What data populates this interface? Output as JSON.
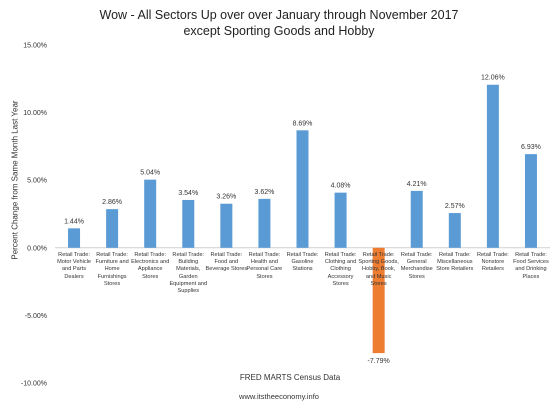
{
  "chart_data": {
    "type": "bar",
    "title": [
      "Wow - All Sectors Up over over January through November 2017",
      "except Sporting Goods and Hobby"
    ],
    "ylabel": "Percent Change from Same Month Last Year",
    "xlabel": "FRED MARTS Census Data",
    "footer": "www.itstheeconomy.info",
    "ylim": [
      -10,
      15
    ],
    "yticks": [
      {
        "value": 15,
        "label": "15.00%"
      },
      {
        "value": 10,
        "label": "10.00%"
      },
      {
        "value": 5,
        "label": "5.00%"
      },
      {
        "value": 0,
        "label": "0.00%"
      },
      {
        "value": -5,
        "label": "-5.00%"
      },
      {
        "value": -10,
        "label": "-10.00%"
      }
    ],
    "grid": false,
    "colors": {
      "default": "#5b9bd5",
      "highlight": "#ed7d31"
    },
    "categories": [
      "Retail Trade: Motor Vehicle and Parts Dealers",
      "Retail Trade: Furniture and Home Furnishings Stores",
      "Retail Trade: Electronics and Appliance Stores",
      "Retail Trade: Building Materials, Garden Equipment and Supplies",
      "Retail Trade: Food and Beverage Stores",
      "Retail Trade: Health and Personal Care Stores",
      "Retail Trade: Gasoline Stations",
      "Retail Trade: Clothing and Clothing Accessory Stores",
      "Retail Trade: Sporting Goods, Hobby, Book, and Music Stores",
      "Retail Trade: General Merchandise Stores",
      "Retail Trade: Miscellaneous Store Retailers",
      "Retail Trade: Nonstore Retailers",
      "Retail Trade: Food Services and Drinking Places"
    ],
    "category_lines": [
      [
        "Retail Trade:",
        "Motor Vehicle",
        "and Parts",
        "Dealers"
      ],
      [
        "Retail Trade:",
        "Furniture and",
        "Home",
        "Furnishings",
        "Stores"
      ],
      [
        "Retail Trade:",
        "Electronics and",
        "Appliance",
        "Stores"
      ],
      [
        "Retail Trade:",
        "Building",
        "Materials,",
        "Garden",
        "Equipment and",
        "Supplies"
      ],
      [
        "Retail Trade:",
        "Food and",
        "Beverage Stores"
      ],
      [
        "Retail Trade:",
        "Health and",
        "Personal Care",
        "Stores"
      ],
      [
        "Retail Trade:",
        "Gasoline",
        "Stations"
      ],
      [
        "Retail Trade:",
        "Clothing and",
        "Clothing",
        "Accessory",
        "Stores"
      ],
      [
        "Retail Trade:",
        "Sporting Goods,",
        "Hobby, Book,",
        "and Music",
        "Stores"
      ],
      [
        "Retail Trade:",
        "General",
        "Merchandise",
        "Stores"
      ],
      [
        "Retail Trade:",
        "Miscellaneous",
        "Store Retailers"
      ],
      [
        "Retail Trade:",
        "Nonstore",
        "Retailers"
      ],
      [
        "Retail Trade:",
        "Food Services",
        "and Drinking",
        "Places"
      ]
    ],
    "values": [
      1.44,
      2.86,
      5.04,
      3.54,
      3.26,
      3.62,
      8.69,
      4.08,
      -7.79,
      4.21,
      2.57,
      12.06,
      6.93
    ],
    "data_labels": [
      "1.44%",
      "2.86%",
      "5.04%",
      "3.54%",
      "3.26%",
      "3.62%",
      "8.69%",
      "4.08%",
      "-7.79%",
      "4.21%",
      "2.57%",
      "12.06%",
      "6.93%"
    ],
    "highlight_index": 8
  }
}
